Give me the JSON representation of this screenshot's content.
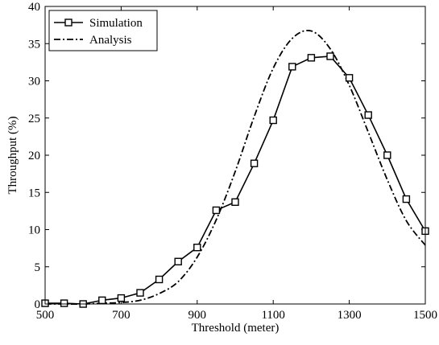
{
  "chart_data": {
    "type": "line",
    "title": "",
    "xlabel": "Threshold (meter)",
    "ylabel": "Throughput (%)",
    "xlim": [
      500,
      1500
    ],
    "ylim": [
      0,
      40
    ],
    "x_ticks": [
      500,
      700,
      900,
      1100,
      1300,
      1500
    ],
    "y_ticks": [
      0,
      5,
      10,
      15,
      20,
      25,
      30,
      35,
      40
    ],
    "grid": false,
    "legend_position": "top-left",
    "series": [
      {
        "name": "Simulation",
        "style": "solid line with square markers",
        "color": "#000000",
        "x": [
          500,
          550,
          600,
          650,
          700,
          750,
          800,
          850,
          900,
          950,
          1000,
          1050,
          1100,
          1150,
          1200,
          1250,
          1300,
          1350,
          1400,
          1450,
          1500
        ],
        "y": [
          0.1,
          0.1,
          0.0,
          0.5,
          0.8,
          1.5,
          3.3,
          5.7,
          7.6,
          12.6,
          13.7,
          18.9,
          24.7,
          31.9,
          33.1,
          33.3,
          30.4,
          25.4,
          20.0,
          14.1,
          9.8
        ]
      },
      {
        "name": "Analysis",
        "style": "dash-dot line",
        "color": "#000000",
        "x": [
          500,
          550,
          600,
          650,
          700,
          750,
          800,
          850,
          900,
          950,
          1000,
          1050,
          1100,
          1150,
          1200,
          1250,
          1300,
          1350,
          1400,
          1450,
          1500
        ],
        "y": [
          0.0,
          0.0,
          0.0,
          0.1,
          0.2,
          0.5,
          1.4,
          3.0,
          6.3,
          11.3,
          17.8,
          25.2,
          31.7,
          35.7,
          36.7,
          34.3,
          29.4,
          23.1,
          16.7,
          11.2,
          7.9
        ]
      }
    ]
  }
}
